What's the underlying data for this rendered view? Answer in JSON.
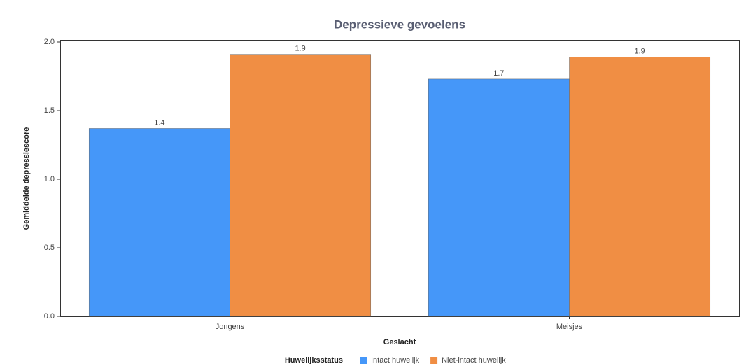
{
  "chart_data": {
    "type": "bar",
    "title": "Depressieve gevoelens",
    "x_label": "Geslacht",
    "y_label": "Gemiddelde depressiescore",
    "categories": [
      "Jongens",
      "Meisjes"
    ],
    "series": [
      {
        "name": "Intact huwelijk",
        "color": "#4597f9",
        "values": [
          1.37,
          1.73
        ],
        "value_labels": [
          "1.4",
          "1.7"
        ]
      },
      {
        "name": "Niet-intact huwelijk",
        "color": "#f08e44",
        "values": [
          1.91,
          1.89
        ],
        "value_labels": [
          "1.9",
          "1.9"
        ]
      }
    ],
    "legend_title": "Huwelijksstatus",
    "legend": "bottom",
    "ylim": [
      0,
      2
    ],
    "yticks": [
      {
        "value": 0,
        "label": "0.0"
      },
      0.5,
      {
        "value": 1,
        "label": "1.0"
      },
      1.5,
      {
        "value": 2,
        "label": "2.0"
      }
    ]
  }
}
